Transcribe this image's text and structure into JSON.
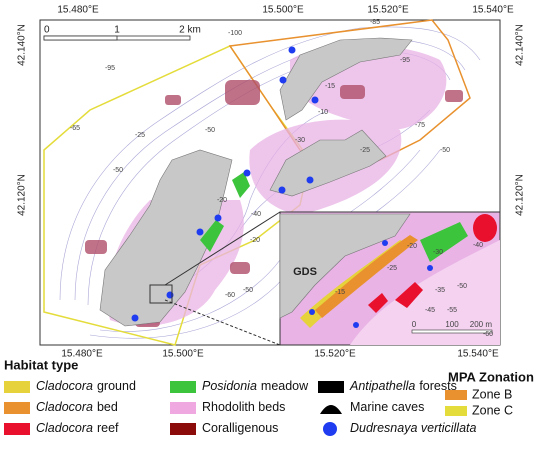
{
  "map": {
    "longitude_labels_top": [
      "15.480°E",
      "15.500°E",
      "15.520°E",
      "15.540°E"
    ],
    "longitude_labels_bottom": [
      "15.480°E",
      "15.500°E",
      "15.520°E",
      "15.540°E"
    ],
    "latitude_labels_left": [
      "42.140°N",
      "42.120°N"
    ],
    "latitude_labels_right": [
      "42.140°N",
      "42.120°N"
    ],
    "scale_bar": {
      "ticks": [
        "0",
        "1",
        "2 km"
      ]
    },
    "contour_labels": [
      -100,
      -95,
      -85,
      -95,
      -65,
      -50,
      -50,
      -25,
      -10,
      -15,
      -20,
      -30,
      -40,
      -50,
      -60,
      -50,
      -75,
      -25,
      -20
    ],
    "inset": {
      "site_label": "GDS",
      "scale_bar": {
        "ticks": [
          "0",
          "100",
          "200 m"
        ]
      },
      "contour_labels": [
        -20,
        -25,
        -30,
        -35,
        -40,
        -45,
        -50,
        -55,
        -60,
        -15
      ]
    }
  },
  "legend": {
    "habitat_title": "Habitat type",
    "habitats": [
      {
        "italic": "Cladocora",
        "text": "ground"
      },
      {
        "italic": "Cladocora",
        "text": "bed"
      },
      {
        "italic": "Cladocora",
        "text": "reef"
      },
      {
        "italic": "Posidonia",
        "text": "meadow"
      },
      {
        "text": "Rhodolith beds"
      },
      {
        "text": "Coralligenous"
      },
      {
        "italic": "Antipathella",
        "text": "forests"
      },
      {
        "text": "Marine caves"
      },
      {
        "italic": "Dudresnaya verticillata"
      }
    ],
    "mpa_title": "MPA Zonation",
    "zones": [
      {
        "name": "Zone B"
      },
      {
        "name": "Zone C"
      }
    ]
  }
}
